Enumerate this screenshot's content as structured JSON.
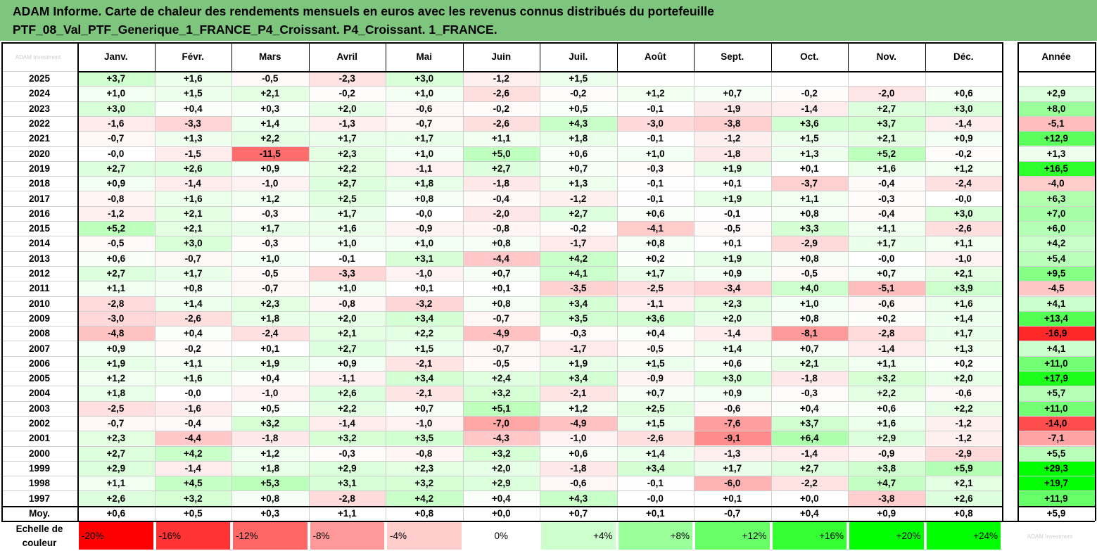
{
  "header": {
    "title_line1": "ADAM Informe. Carte de chaleur des rendements mensuels en euros avec les revenus connus distribués du portefeuille",
    "title_line2": "PTF_08_Val_PTF_Generique_1_FRANCE_P4_Croissant. P4_Croissant. 1_FRANCE."
  },
  "logo": {
    "text": "ADAM Investment",
    "color": "#cccccc"
  },
  "watermark": {
    "text": "ADAM Investment"
  },
  "colors": {
    "header_bg": "#7ec67e",
    "negative_max": "#ff0000",
    "neutral": "#ffffff",
    "positive_max": "#00ff00"
  },
  "chart_data": {
    "type": "heatmap",
    "title": "ADAM Informe. Carte de chaleur des rendements mensuels en euros avec les revenus connus distribués du portefeuille PTF_08_Val_PTF_Generique_1_FRANCE_P4_Croissant. P4_Croissant. 1_FRANCE.",
    "columns": [
      "Janv.",
      "Févr.",
      "Mars",
      "Avril",
      "Mai",
      "Juin",
      "Juil.",
      "Août",
      "Sept.",
      "Oct.",
      "Nov.",
      "Déc."
    ],
    "year_column": "Année",
    "rows": [
      {
        "label": "2025",
        "values": [
          "+3,7",
          "+1,6",
          "-0,5",
          "-2,3",
          "+3,0",
          "-1,2",
          "+1,5",
          "",
          "",
          "",
          "",
          ""
        ],
        "year": ""
      },
      {
        "label": "2024",
        "values": [
          "+1,0",
          "+1,5",
          "+2,1",
          "-0,2",
          "+1,0",
          "-2,6",
          "-0,2",
          "+1,2",
          "+0,7",
          "-0,2",
          "-2,0",
          "+0,6"
        ],
        "year": "+2,9"
      },
      {
        "label": "2023",
        "values": [
          "+3,0",
          "+0,4",
          "+0,3",
          "+2,0",
          "-0,6",
          "-0,2",
          "+0,5",
          "-0,1",
          "-1,9",
          "-1,4",
          "+2,7",
          "+3,0"
        ],
        "year": "+8,0"
      },
      {
        "label": "2022",
        "values": [
          "-1,6",
          "-3,3",
          "+1,4",
          "-1,3",
          "-0,7",
          "-2,6",
          "+4,3",
          "-3,0",
          "-3,8",
          "+3,6",
          "+3,7",
          "-1,4"
        ],
        "year": "-5,1"
      },
      {
        "label": "2021",
        "values": [
          "-0,7",
          "+1,3",
          "+2,2",
          "+1,7",
          "+1,7",
          "+1,1",
          "+1,8",
          "-0,1",
          "-1,2",
          "+1,5",
          "+2,1",
          "+0,9"
        ],
        "year": "+12,9"
      },
      {
        "label": "2020",
        "values": [
          "-0,0",
          "-1,5",
          "-11,5",
          "+2,3",
          "+1,0",
          "+5,0",
          "+0,6",
          "+1,0",
          "-1,8",
          "+1,3",
          "+5,2",
          "-0,2"
        ],
        "year": "+1,3"
      },
      {
        "label": "2019",
        "values": [
          "+2,7",
          "+2,6",
          "+0,9",
          "+2,2",
          "-1,1",
          "+2,7",
          "+0,7",
          "-0,3",
          "+1,9",
          "+0,1",
          "+1,6",
          "+1,2"
        ],
        "year": "+16,5"
      },
      {
        "label": "2018",
        "values": [
          "+0,9",
          "-1,4",
          "-1,0",
          "+2,7",
          "+1,8",
          "-1,8",
          "+1,3",
          "-0,1",
          "+0,1",
          "-3,7",
          "-0,4",
          "-2,4"
        ],
        "year": "-4,0"
      },
      {
        "label": "2017",
        "values": [
          "-0,8",
          "+1,6",
          "+1,2",
          "+2,5",
          "+0,8",
          "-0,4",
          "-1,2",
          "-0,1",
          "+1,9",
          "+1,1",
          "-0,3",
          "-0,0"
        ],
        "year": "+6,3"
      },
      {
        "label": "2016",
        "values": [
          "-1,2",
          "+2,1",
          "-0,3",
          "+1,7",
          "-0,0",
          "-2,0",
          "+2,7",
          "+0,6",
          "-0,1",
          "+0,8",
          "-0,4",
          "+3,0"
        ],
        "year": "+7,0"
      },
      {
        "label": "2015",
        "values": [
          "+5,2",
          "+2,1",
          "+1,7",
          "+1,6",
          "-0,9",
          "-0,8",
          "-0,2",
          "-4,1",
          "-0,5",
          "+3,3",
          "+1,1",
          "-2,6"
        ],
        "year": "+6,0"
      },
      {
        "label": "2014",
        "values": [
          "-0,5",
          "+3,0",
          "-0,3",
          "+1,0",
          "+1,0",
          "+0,8",
          "-1,7",
          "+0,8",
          "+0,1",
          "-2,9",
          "+1,7",
          "+1,1"
        ],
        "year": "+4,2"
      },
      {
        "label": "2013",
        "values": [
          "+0,6",
          "-0,7",
          "+1,0",
          "-0,1",
          "+3,1",
          "-4,4",
          "+4,2",
          "+0,2",
          "+1,9",
          "+0,8",
          "-0,0",
          "-1,0"
        ],
        "year": "+5,4"
      },
      {
        "label": "2012",
        "values": [
          "+2,7",
          "+1,7",
          "-0,5",
          "-3,3",
          "-1,0",
          "+0,7",
          "+4,1",
          "+1,7",
          "+0,9",
          "-0,5",
          "+0,7",
          "+2,1"
        ],
        "year": "+9,5"
      },
      {
        "label": "2011",
        "values": [
          "+1,1",
          "+0,8",
          "-0,7",
          "+1,0",
          "+0,1",
          "+0,1",
          "-3,5",
          "-2,5",
          "-3,4",
          "+4,0",
          "-5,1",
          "+3,9"
        ],
        "year": "-4,5"
      },
      {
        "label": "2010",
        "values": [
          "-2,8",
          "+1,4",
          "+2,3",
          "-0,8",
          "-3,2",
          "+0,8",
          "+3,4",
          "-1,1",
          "+2,3",
          "+1,0",
          "-0,6",
          "+1,6"
        ],
        "year": "+4,1"
      },
      {
        "label": "2009",
        "values": [
          "-3,0",
          "-2,6",
          "+1,8",
          "+2,0",
          "+3,4",
          "-0,7",
          "+3,5",
          "+3,6",
          "+2,0",
          "+0,8",
          "+0,2",
          "+1,4"
        ],
        "year": "+13,4"
      },
      {
        "label": "2008",
        "values": [
          "-4,8",
          "+0,4",
          "-2,4",
          "+2,1",
          "+2,2",
          "-4,9",
          "-0,3",
          "+0,4",
          "-1,4",
          "-8,1",
          "-2,8",
          "+1,7"
        ],
        "year": "-16,9"
      },
      {
        "label": "2007",
        "values": [
          "+0,9",
          "-0,2",
          "+0,1",
          "+2,7",
          "+1,5",
          "-0,7",
          "-1,7",
          "-0,5",
          "+1,4",
          "+0,7",
          "-1,4",
          "+1,3"
        ],
        "year": "+4,1"
      },
      {
        "label": "2006",
        "values": [
          "+1,9",
          "+1,1",
          "+1,9",
          "+0,9",
          "-2,1",
          "-0,5",
          "+1,9",
          "+1,5",
          "+0,6",
          "+2,1",
          "+1,1",
          "+0,2"
        ],
        "year": "+11,0"
      },
      {
        "label": "2005",
        "values": [
          "+1,2",
          "+1,6",
          "+0,4",
          "-1,1",
          "+3,4",
          "+2,4",
          "+3,4",
          "-0,9",
          "+3,0",
          "-1,8",
          "+3,2",
          "+2,0"
        ],
        "year": "+17,9"
      },
      {
        "label": "2004",
        "values": [
          "+1,8",
          "-0,0",
          "-1,0",
          "+2,6",
          "-2,1",
          "+3,2",
          "-2,1",
          "+0,7",
          "+0,9",
          "-0,3",
          "+2,2",
          "-0,6"
        ],
        "year": "+5,7"
      },
      {
        "label": "2003",
        "values": [
          "-2,5",
          "-1,6",
          "+0,5",
          "+2,2",
          "+0,7",
          "+5,1",
          "+1,2",
          "+2,5",
          "-0,6",
          "+0,4",
          "+0,6",
          "+2,2"
        ],
        "year": "+11,0"
      },
      {
        "label": "2002",
        "values": [
          "-0,7",
          "-0,4",
          "+3,2",
          "-1,4",
          "-1,0",
          "-7,0",
          "-4,9",
          "+1,5",
          "-7,6",
          "+3,7",
          "+1,6",
          "-1,2"
        ],
        "year": "-14,0"
      },
      {
        "label": "2001",
        "values": [
          "+2,3",
          "-4,4",
          "-1,8",
          "+3,2",
          "+3,5",
          "-4,3",
          "-1,0",
          "-2,6",
          "-9,1",
          "+6,4",
          "+2,9",
          "-1,2"
        ],
        "year": "-7,1"
      },
      {
        "label": "2000",
        "values": [
          "+2,7",
          "+4,2",
          "+1,2",
          "-0,3",
          "-0,8",
          "+3,2",
          "+0,6",
          "+1,4",
          "-1,3",
          "-1,4",
          "-0,9",
          "-2,9"
        ],
        "year": "+5,5"
      },
      {
        "label": "1999",
        "values": [
          "+2,9",
          "-1,4",
          "+1,8",
          "+2,9",
          "+2,3",
          "+2,0",
          "-1,8",
          "+3,4",
          "+1,7",
          "+2,7",
          "+3,8",
          "+5,9"
        ],
        "year": "+29,3"
      },
      {
        "label": "1998",
        "values": [
          "+1,1",
          "+4,5",
          "+5,3",
          "+3,1",
          "+3,2",
          "+2,9",
          "-0,6",
          "-0,1",
          "-6,0",
          "-2,2",
          "+4,7",
          "+2,1"
        ],
        "year": "+19,7"
      },
      {
        "label": "1997",
        "values": [
          "+2,6",
          "+3,2",
          "+0,8",
          "-2,8",
          "+4,2",
          "+0,4",
          "+4,3",
          "-0,0",
          "+0,1",
          "+0,0",
          "-3,8",
          "+2,6"
        ],
        "year": "+11,9"
      }
    ],
    "average_row": {
      "label": "Moy.",
      "values": [
        "+0,6",
        "+0,5",
        "+0,3",
        "+1,1",
        "+0,8",
        "+0,0",
        "+0,7",
        "+0,1",
        "-0,7",
        "+0,4",
        "+0,9",
        "+0,8"
      ],
      "year": "+5,9"
    },
    "color_scale": {
      "label_line1": "Echelle de",
      "label_line2": "couleur",
      "stops": [
        "-20%",
        "-16%",
        "-12%",
        "-8%",
        "-4%",
        "0%",
        "+4%",
        "+8%",
        "+12%",
        "+16%",
        "+20%",
        "+24%"
      ]
    }
  }
}
